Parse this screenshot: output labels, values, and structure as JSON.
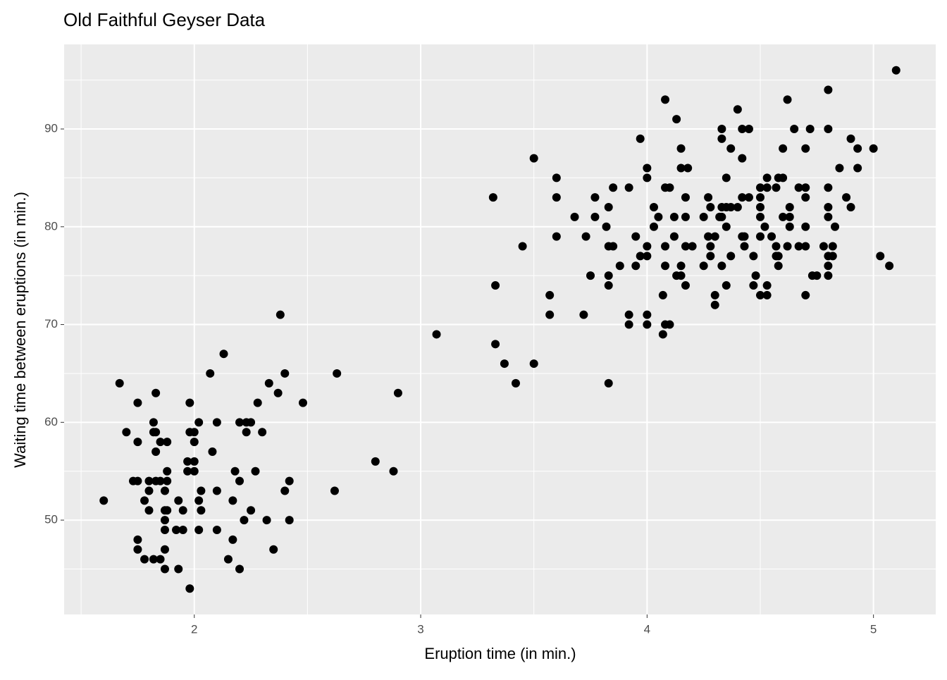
{
  "chart_data": {
    "type": "scatter",
    "title": "Old Faithful Geyser Data",
    "x_label": "Eruption time (in min.)",
    "y_label": "Waiting time between eruptions (in min.)",
    "color": "#000000",
    "grid": true,
    "xlim": [
      1.425,
      5.275
    ],
    "ylim": [
      40.35,
      98.65
    ],
    "xticks": [
      2,
      3,
      4,
      5
    ],
    "yticks": [
      50,
      60,
      70,
      80,
      90
    ],
    "x": [
      1.6,
      1.67,
      1.7,
      1.73,
      1.75,
      1.75,
      1.75,
      1.75,
      1.75,
      1.78,
      1.78,
      1.8,
      1.8,
      1.8,
      1.82,
      1.82,
      1.82,
      1.83,
      1.83,
      1.83,
      1.83,
      1.85,
      1.85,
      1.85,
      1.87,
      1.87,
      1.87,
      1.87,
      1.87,
      1.87,
      1.88,
      1.88,
      1.88,
      1.88,
      1.92,
      1.93,
      1.93,
      1.95,
      1.95,
      1.97,
      1.97,
      1.98,
      1.98,
      2.0,
      2.0,
      2.0,
      2.0,
      1.98,
      2.02,
      2.02,
      2.02,
      2.03,
      2.03,
      2.07,
      2.08,
      2.1,
      2.1,
      2.1,
      2.13,
      2.15,
      2.17,
      2.17,
      2.18,
      2.2,
      2.2,
      2.2,
      2.22,
      2.23,
      2.23,
      2.25,
      2.25,
      2.27,
      2.28,
      2.3,
      2.32,
      2.33,
      2.35,
      2.37,
      2.38,
      2.4,
      2.4,
      2.42,
      2.42,
      2.48,
      2.62,
      2.63,
      2.8,
      2.88,
      2.9,
      3.07,
      3.32,
      3.33,
      3.33,
      3.37,
      3.42,
      3.45,
      3.5,
      3.5,
      3.57,
      3.57,
      3.6,
      3.6,
      3.6,
      3.68,
      3.72,
      3.73,
      3.75,
      3.77,
      3.77,
      3.82,
      3.83,
      3.83,
      3.83,
      3.83,
      3.83,
      3.85,
      3.85,
      3.88,
      3.92,
      3.92,
      3.92,
      3.95,
      3.95,
      3.97,
      3.97,
      4.0,
      4.0,
      4.0,
      4.0,
      4.0,
      4.0,
      4.03,
      4.03,
      4.05,
      4.07,
      4.07,
      4.08,
      4.08,
      4.08,
      4.08,
      4.08,
      4.1,
      4.1,
      4.12,
      4.12,
      4.13,
      4.13,
      4.15,
      4.15,
      4.15,
      4.15,
      4.17,
      4.17,
      4.17,
      4.17,
      4.18,
      4.2,
      4.25,
      4.25,
      4.27,
      4.27,
      4.28,
      4.28,
      4.28,
      4.3,
      4.3,
      4.3,
      4.32,
      4.33,
      4.33,
      4.33,
      4.33,
      4.33,
      4.35,
      4.35,
      4.35,
      4.35,
      4.37,
      4.37,
      4.37,
      4.4,
      4.4,
      4.42,
      4.42,
      4.42,
      4.42,
      4.43,
      4.43,
      4.45,
      4.45,
      4.47,
      4.47,
      4.48,
      4.5,
      4.5,
      4.5,
      4.5,
      4.5,
      4.5,
      4.52,
      4.53,
      4.53,
      4.53,
      4.53,
      4.55,
      4.57,
      4.57,
      4.57,
      4.58,
      4.58,
      4.58,
      4.6,
      4.6,
      4.6,
      4.62,
      4.62,
      4.63,
      4.63,
      4.63,
      4.65,
      4.67,
      4.67,
      4.7,
      4.7,
      4.7,
      4.7,
      4.7,
      4.7,
      4.72,
      4.73,
      4.75,
      4.78,
      4.8,
      4.8,
      4.8,
      4.8,
      4.8,
      4.8,
      4.8,
      4.8,
      4.82,
      4.82,
      4.83,
      4.85,
      4.88,
      4.9,
      4.9,
      4.93,
      4.93,
      5.0,
      5.03,
      5.07,
      5.1
    ],
    "values": [
      52,
      64,
      59,
      54,
      54,
      58,
      62,
      48,
      47,
      52,
      46,
      53,
      51,
      54,
      60,
      59,
      46,
      59,
      57,
      63,
      54,
      46,
      58,
      54,
      53,
      51,
      50,
      49,
      47,
      45,
      58,
      55,
      54,
      51,
      49,
      45,
      52,
      49,
      51,
      56,
      55,
      62,
      59,
      59,
      56,
      55,
      58,
      43,
      60,
      52,
      49,
      53,
      51,
      65,
      57,
      60,
      53,
      49,
      67,
      46,
      52,
      48,
      55,
      60,
      54,
      45,
      50,
      60,
      59,
      60,
      51,
      55,
      62,
      59,
      50,
      64,
      47,
      63,
      71,
      65,
      53,
      54,
      50,
      62,
      53,
      65,
      56,
      55,
      63,
      69,
      83,
      74,
      68,
      66,
      64,
      78,
      87,
      66,
      73,
      71,
      85,
      83,
      79,
      81,
      71,
      79,
      75,
      83,
      81,
      80,
      82,
      78,
      75,
      74,
      64,
      84,
      78,
      76,
      84,
      71,
      70,
      79,
      76,
      89,
      77,
      86,
      85,
      78,
      77,
      71,
      70,
      82,
      80,
      81,
      73,
      69,
      93,
      84,
      78,
      76,
      70,
      84,
      70,
      81,
      79,
      91,
      75,
      88,
      86,
      76,
      75,
      83,
      81,
      78,
      74,
      86,
      78,
      81,
      76,
      83,
      79,
      82,
      78,
      77,
      79,
      73,
      72,
      81,
      90,
      89,
      82,
      81,
      76,
      85,
      82,
      80,
      74,
      88,
      82,
      77,
      92,
      82,
      90,
      87,
      83,
      79,
      79,
      78,
      90,
      83,
      77,
      74,
      75,
      84,
      83,
      82,
      81,
      79,
      73,
      80,
      85,
      84,
      74,
      73,
      79,
      84,
      78,
      77,
      85,
      77,
      76,
      88,
      85,
      81,
      93,
      78,
      82,
      81,
      80,
      90,
      84,
      78,
      88,
      84,
      83,
      80,
      78,
      73,
      90,
      75,
      75,
      78,
      94,
      90,
      84,
      82,
      81,
      77,
      76,
      75,
      78,
      77,
      80,
      86,
      83,
      89,
      82,
      88,
      86,
      88,
      77,
      76,
      96
    ]
  }
}
